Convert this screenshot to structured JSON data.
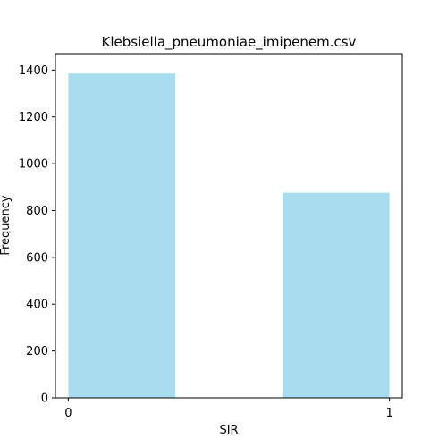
{
  "chart_data": {
    "type": "bar",
    "title": "Klebsiella_pneumoniae_imipenem.csv",
    "xlabel": "SIR",
    "ylabel": "Frequency",
    "categories": [
      "0",
      "1"
    ],
    "x": [
      0,
      1
    ],
    "values": [
      1385,
      876
    ],
    "xlim": [
      -0.04,
      1.04
    ],
    "ylim": [
      0,
      1470
    ],
    "x_ticks": [
      0,
      1
    ],
    "y_ticks": [
      0,
      200,
      400,
      600,
      800,
      1000,
      1200,
      1400
    ],
    "bar_color": "#a8dcef",
    "grid": false,
    "legend": "none"
  }
}
